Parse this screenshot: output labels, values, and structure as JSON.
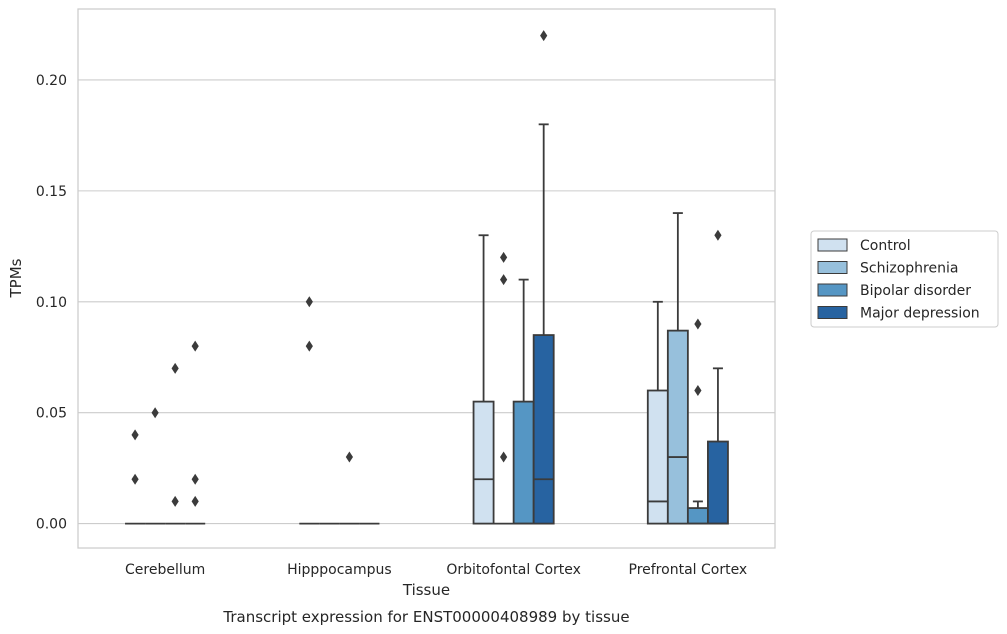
{
  "caption": "Transcript expression for ENST00000408989 by tissue",
  "chart_data": {
    "type": "boxplot",
    "xlabel": "Tissue",
    "ylabel": "TPMs",
    "ylim": [
      -0.011,
      0.232
    ],
    "yticks": [
      0.0,
      0.05,
      0.1,
      0.15,
      0.2
    ],
    "ytick_labels": [
      "0.00",
      "0.05",
      "0.10",
      "0.15",
      "0.20"
    ],
    "grid": "horizontal",
    "legend_position": "right",
    "categories": [
      "Cerebellum",
      "Hipppocampus",
      "Orbitofontal Cortex",
      "Prefrontal Cortex"
    ],
    "series": [
      {
        "name": "Control",
        "color": "#d0e1f0",
        "boxes": [
          {
            "q1": 0,
            "median": 0,
            "q3": 0,
            "whisker_low": 0,
            "whisker_high": 0,
            "outliers": [
              0.02,
              0.04
            ]
          },
          {
            "q1": 0,
            "median": 0,
            "q3": 0,
            "whisker_low": 0,
            "whisker_high": 0,
            "outliers": [
              0.08,
              0.1
            ]
          },
          {
            "q1": 0,
            "median": 0.02,
            "q3": 0.055,
            "whisker_low": 0,
            "whisker_high": 0.13,
            "outliers": []
          },
          {
            "q1": 0,
            "median": 0.01,
            "q3": 0.06,
            "whisker_low": 0,
            "whisker_high": 0.1,
            "outliers": []
          }
        ]
      },
      {
        "name": "Schizophrenia",
        "color": "#97c0dc",
        "boxes": [
          {
            "q1": 0,
            "median": 0,
            "q3": 0,
            "whisker_low": 0,
            "whisker_high": 0,
            "outliers": [
              0.05
            ]
          },
          {
            "q1": 0,
            "median": 0,
            "q3": 0,
            "whisker_low": 0,
            "whisker_high": 0,
            "outliers": []
          },
          {
            "q1": 0,
            "median": 0,
            "q3": 0,
            "whisker_low": 0,
            "whisker_high": 0,
            "outliers": [
              0.03,
              0.11,
              0.12
            ]
          },
          {
            "q1": 0,
            "median": 0.03,
            "q3": 0.087,
            "whisker_low": 0,
            "whisker_high": 0.14,
            "outliers": []
          }
        ]
      },
      {
        "name": "Bipolar disorder",
        "color": "#5596c4",
        "boxes": [
          {
            "q1": 0,
            "median": 0,
            "q3": 0,
            "whisker_low": 0,
            "whisker_high": 0,
            "outliers": [
              0.01,
              0.07
            ]
          },
          {
            "q1": 0,
            "median": 0,
            "q3": 0,
            "whisker_low": 0,
            "whisker_high": 0,
            "outliers": [
              0.03
            ]
          },
          {
            "q1": 0,
            "median": 0,
            "q3": 0.055,
            "whisker_low": 0,
            "whisker_high": 0.11,
            "outliers": []
          },
          {
            "q1": 0,
            "median": 0,
            "q3": 0.007,
            "whisker_low": 0,
            "whisker_high": 0.01,
            "outliers": [
              0.06,
              0.09
            ]
          }
        ]
      },
      {
        "name": "Major depression",
        "color": "#2763a1",
        "boxes": [
          {
            "q1": 0,
            "median": 0,
            "q3": 0,
            "whisker_low": 0,
            "whisker_high": 0,
            "outliers": [
              0.01,
              0.02,
              0.08
            ]
          },
          {
            "q1": 0,
            "median": 0,
            "q3": 0,
            "whisker_low": 0,
            "whisker_high": 0,
            "outliers": []
          },
          {
            "q1": 0,
            "median": 0.02,
            "q3": 0.085,
            "whisker_low": 0,
            "whisker_high": 0.18,
            "outliers": [
              0.22
            ]
          },
          {
            "q1": 0,
            "median": 0,
            "q3": 0.037,
            "whisker_low": 0,
            "whisker_high": 0.07,
            "outliers": [
              0.13
            ]
          }
        ]
      }
    ]
  }
}
